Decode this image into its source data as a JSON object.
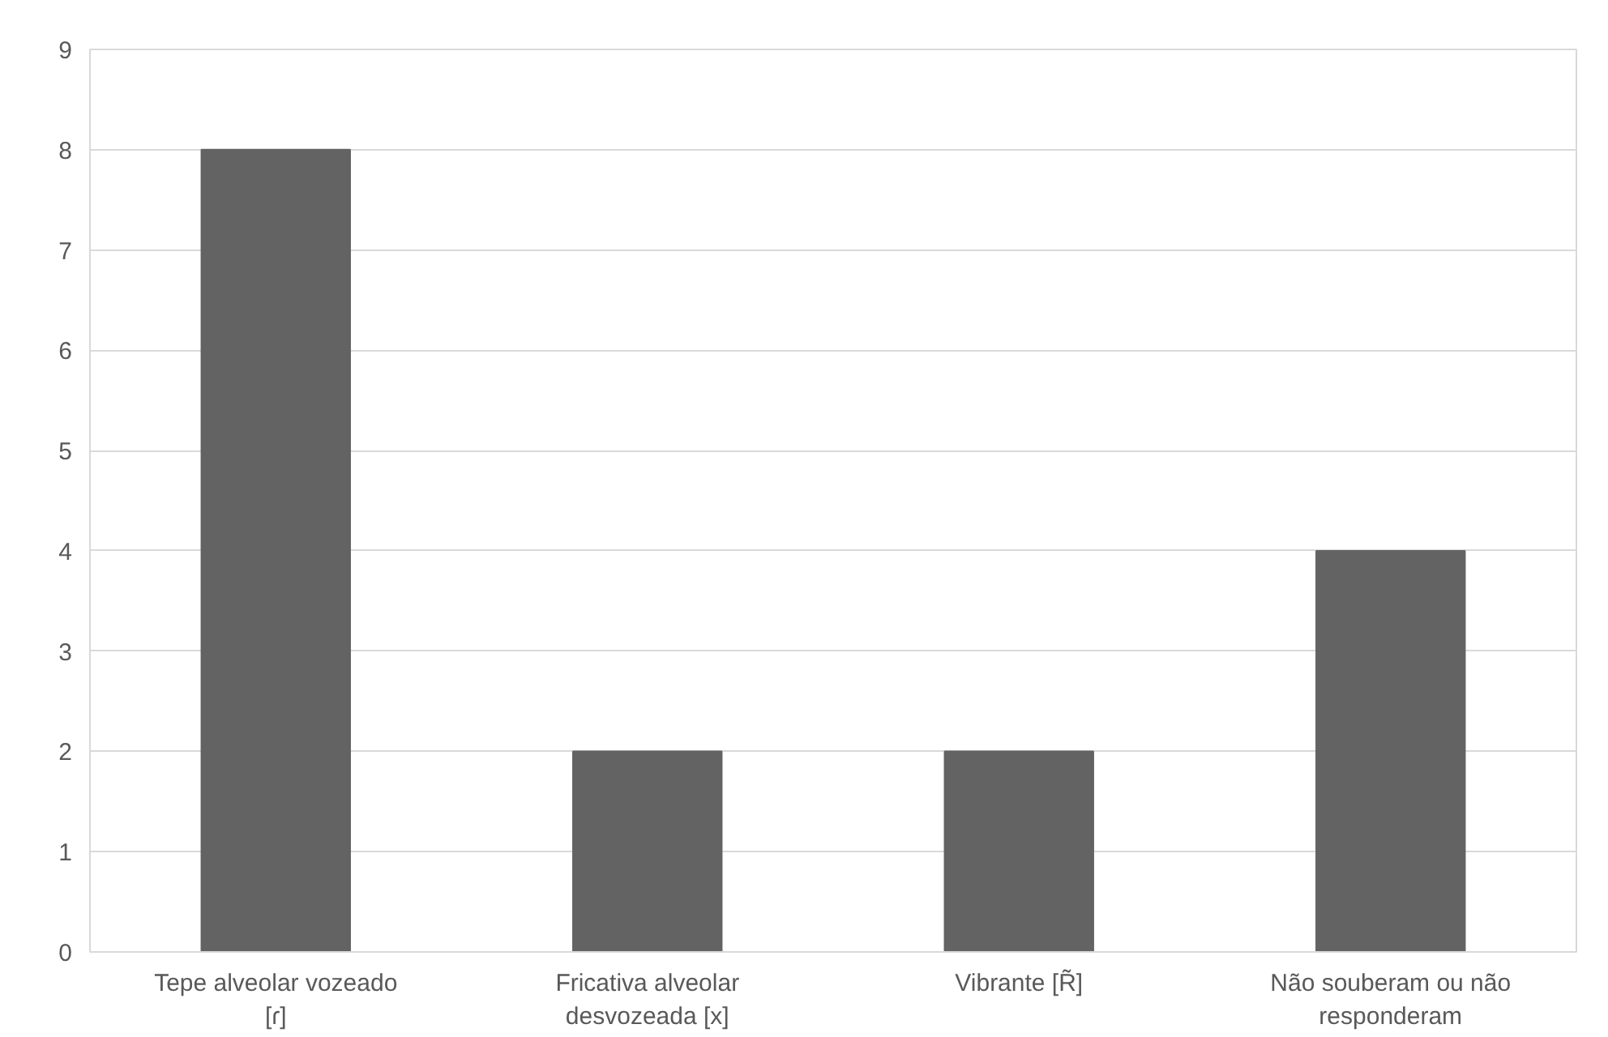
{
  "chart_data": {
    "type": "bar",
    "categories": [
      "Tepe alveolar vozeado [ɾ]",
      "Fricativa alveolar desvozeada [x]",
      "Vibrante [R̃]",
      "Não souberam ou não responderam"
    ],
    "values": [
      8,
      2,
      2,
      4
    ],
    "color": "#636363",
    "ylim": [
      0,
      9
    ],
    "yticks": [
      0,
      1,
      2,
      3,
      4,
      5,
      6,
      7,
      8,
      9
    ],
    "grid": "y"
  }
}
